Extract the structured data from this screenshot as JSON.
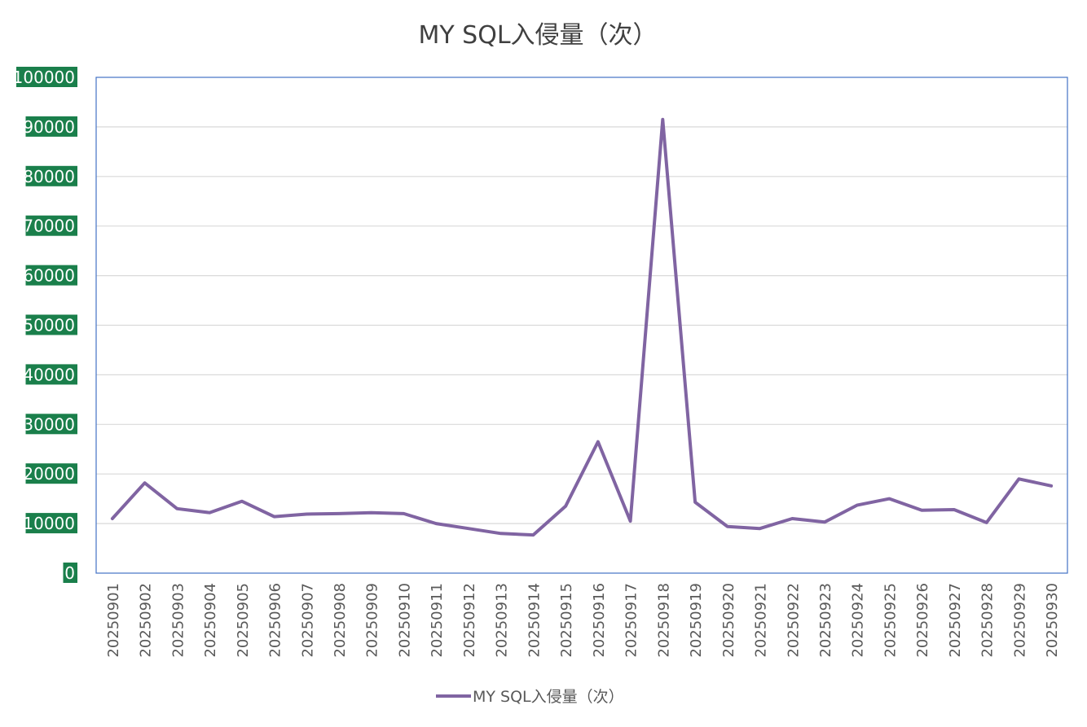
{
  "chart_data": {
    "type": "line",
    "title": "MY SQL入侵量（次）",
    "xlabel": "",
    "ylabel": "",
    "ylim": [
      0,
      100000
    ],
    "yticks": [
      "0",
      "10000",
      "20000",
      "30000",
      "40000",
      "50000",
      "60000",
      "70000",
      "80000",
      "90000",
      "100000"
    ],
    "grid": true,
    "legend": "bottom",
    "categories": [
      "20250901",
      "20250902",
      "20250903",
      "20250904",
      "20250905",
      "20250906",
      "20250907",
      "20250908",
      "20250909",
      "20250910",
      "20250911",
      "20250912",
      "20250913",
      "20250914",
      "20250915",
      "20250916",
      "20250917",
      "20250918",
      "20250919",
      "20250920",
      "20250921",
      "20250922",
      "20250923",
      "20250924",
      "20250925",
      "20250926",
      "20250927",
      "20250928",
      "20250929",
      "20250930"
    ],
    "series": [
      {
        "name": "MY SQL入侵量（次）",
        "color": "#8064a2",
        "values": [
          11000,
          18200,
          13000,
          12200,
          14500,
          11400,
          11900,
          12000,
          12200,
          12000,
          10000,
          9000,
          8000,
          7700,
          13500,
          26500,
          10500,
          91500,
          14300,
          9400,
          9000,
          11000,
          10300,
          13700,
          15000,
          12700,
          12800,
          10200,
          19000,
          17600
        ]
      }
    ],
    "colors": {
      "tick_label_bg": "#1a7f4b",
      "tick_label_text": "#ffffff",
      "plot_border": "#4472c4",
      "grid": "#d9d9d9",
      "axis_text": "#595959",
      "title_text": "#404040"
    }
  }
}
